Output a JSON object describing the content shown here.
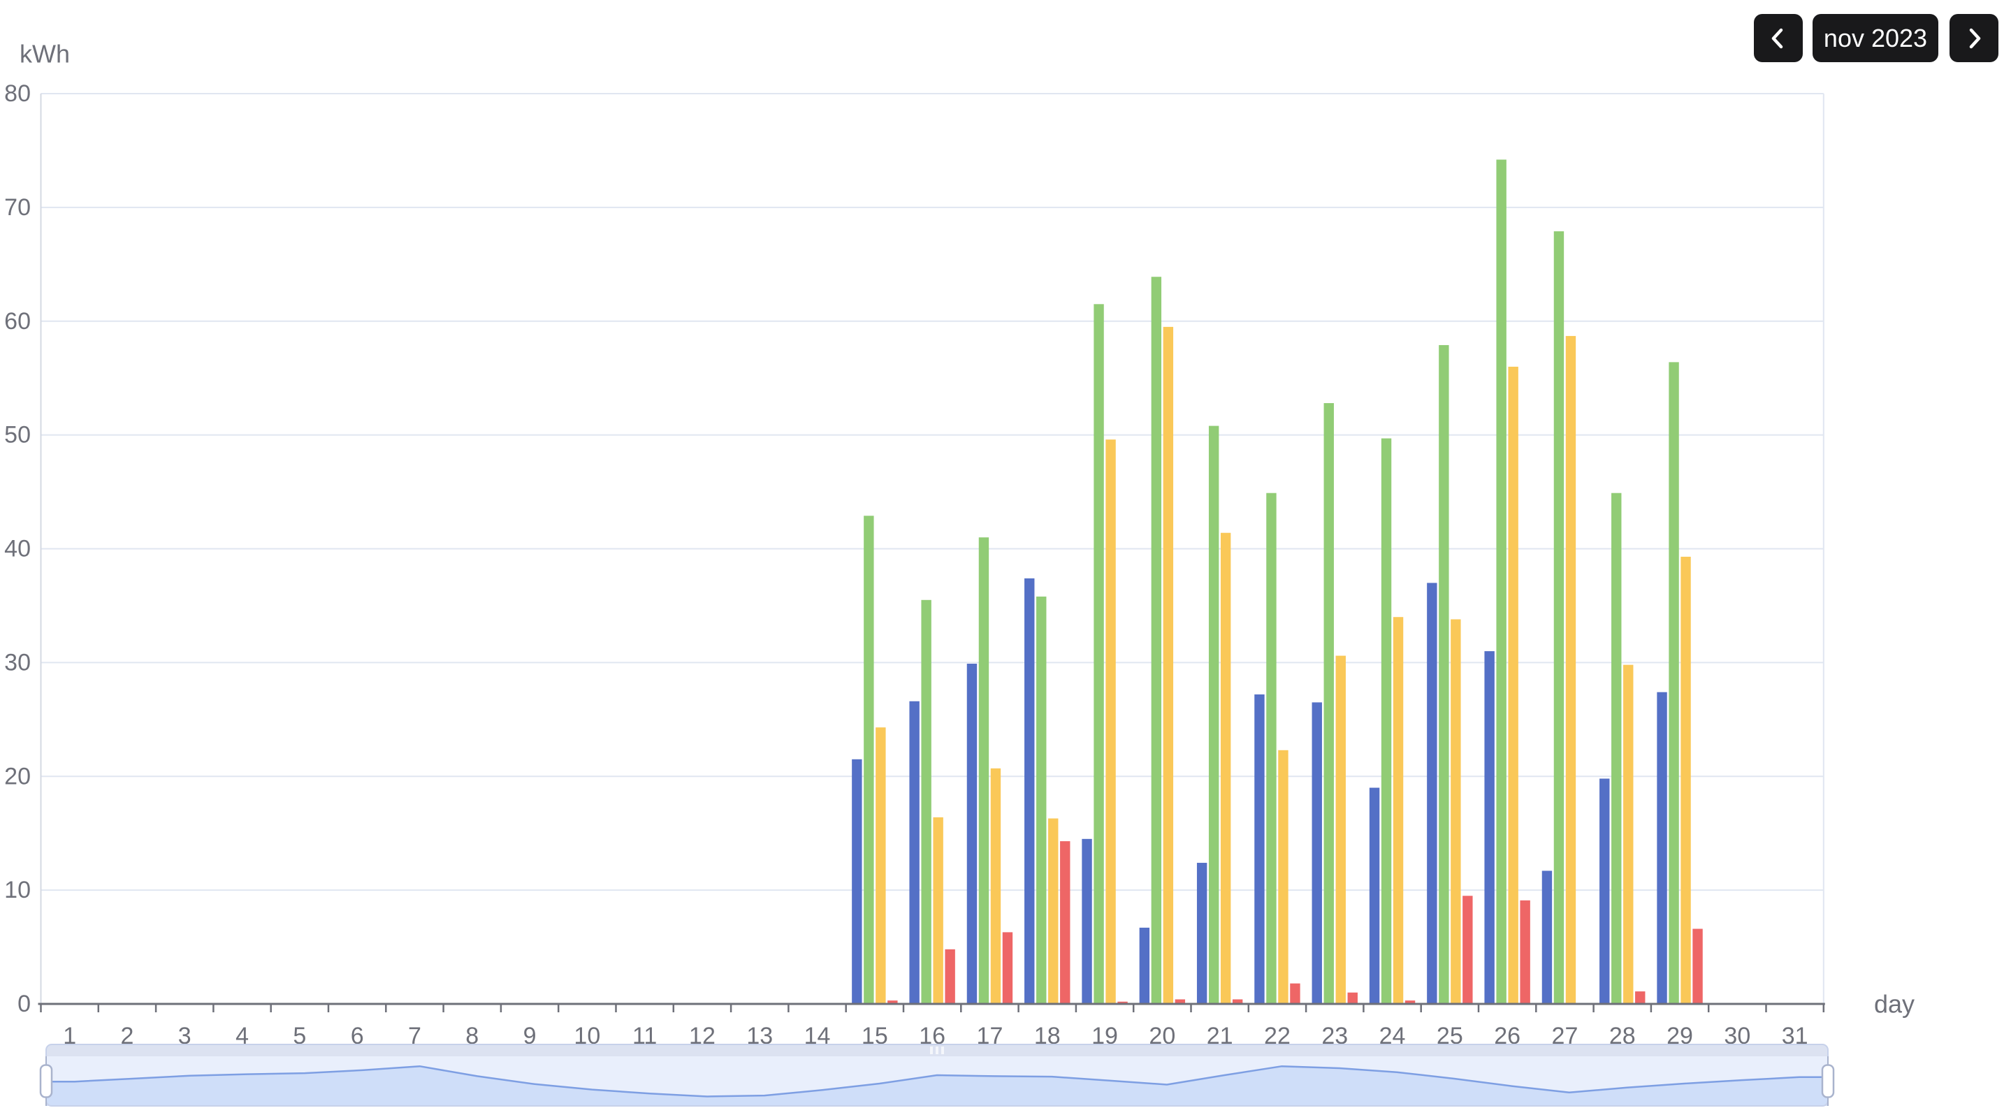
{
  "header": {
    "prev_button": "previous month",
    "period_label": "nov 2023",
    "next_button": "next month"
  },
  "chart_data": {
    "type": "bar",
    "title": "",
    "xlabel": "day",
    "ylabel": "kWh",
    "ylim": [
      0,
      80
    ],
    "y_ticks": [
      0,
      10,
      20,
      30,
      40,
      50,
      60,
      70,
      80
    ],
    "grid": true,
    "legend": "none",
    "categories": [
      1,
      2,
      3,
      4,
      5,
      6,
      7,
      8,
      9,
      10,
      11,
      12,
      13,
      14,
      15,
      16,
      17,
      18,
      19,
      20,
      21,
      22,
      23,
      24,
      25,
      26,
      27,
      28,
      29,
      30,
      31
    ],
    "series": [
      {
        "name": "series-blue",
        "color": "#5470C6",
        "values": [
          0,
          0,
          0,
          0,
          0,
          0,
          0,
          0,
          0,
          0,
          0,
          0,
          0,
          0,
          21.5,
          26.6,
          29.9,
          37.4,
          14.5,
          6.7,
          12.4,
          27.2,
          26.5,
          19.0,
          37.0,
          31.0,
          11.7,
          19.8,
          27.4,
          0,
          0
        ]
      },
      {
        "name": "series-green",
        "color": "#91CC75",
        "values": [
          0,
          0,
          0,
          0,
          0,
          0,
          0,
          0,
          0,
          0,
          0,
          0,
          0,
          0,
          42.9,
          35.5,
          41.0,
          35.8,
          61.5,
          63.9,
          50.8,
          44.9,
          52.8,
          49.7,
          57.9,
          74.2,
          67.9,
          44.9,
          56.4,
          0,
          0
        ]
      },
      {
        "name": "series-yellow",
        "color": "#FAC858",
        "values": [
          0,
          0,
          0,
          0,
          0,
          0,
          0,
          0,
          0,
          0,
          0,
          0,
          0,
          0,
          24.3,
          16.4,
          20.7,
          16.3,
          49.6,
          59.5,
          41.4,
          22.3,
          30.6,
          34.0,
          33.8,
          56.0,
          58.7,
          29.8,
          39.3,
          0,
          0
        ]
      },
      {
        "name": "series-red",
        "color": "#EE6666",
        "values": [
          0,
          0,
          0,
          0,
          0,
          0,
          0,
          0,
          0,
          0,
          0,
          0,
          0,
          0,
          0.3,
          4.8,
          6.3,
          14.3,
          0.2,
          0.4,
          0.4,
          1.8,
          1.0,
          0.3,
          9.5,
          9.1,
          0,
          1.1,
          6.6,
          0,
          0
        ]
      }
    ]
  },
  "navigator": {
    "grip_icon": "grip-dots",
    "preview_values": [
      0.49,
      0.55,
      0.61,
      0.64,
      0.66,
      0.72,
      0.8,
      0.6,
      0.44,
      0.33,
      0.25,
      0.19,
      0.21,
      0.32,
      0.45,
      0.62,
      0.6,
      0.59,
      0.51,
      0.43,
      0.62,
      0.8,
      0.76,
      0.68,
      0.55,
      0.4,
      0.27,
      0.37,
      0.45,
      0.52,
      0.58
    ]
  },
  "colors": {
    "background": "#FFFFFF",
    "grid_line": "#E0E6F1",
    "plot_border": "#E0E6F1",
    "y_axis_line": "#D4D9E3",
    "axis_line": "#6E7079",
    "axis_label": "#6E7079",
    "button_bg": "#19191B",
    "button_text": "#FFFFFF",
    "nav_strip": "#DCE2F1",
    "nav_bg": "#E9EFFC",
    "nav_fill": "#CFDEF9",
    "nav_line": "#7E9FE3",
    "nav_border": "#C7D1EA",
    "nav_handle_fill": "#FFFFFF",
    "nav_handle_border": "#A9B3CD",
    "nav_grip": "#F4F6FB"
  }
}
